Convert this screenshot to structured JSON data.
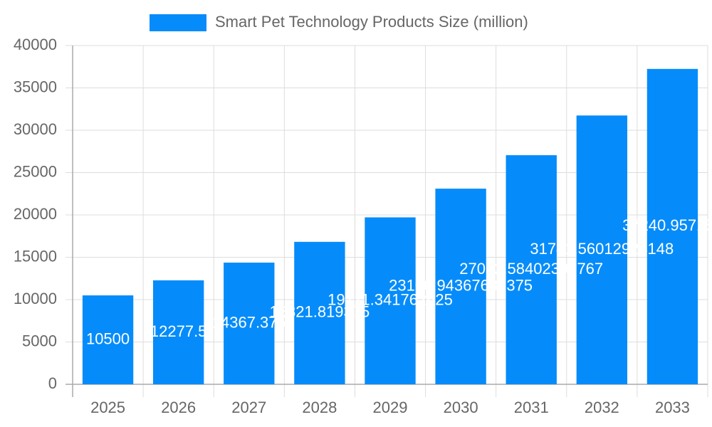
{
  "chart_data": {
    "type": "bar",
    "categories": [
      "2025",
      "2026",
      "2027",
      "2028",
      "2029",
      "2030",
      "2031",
      "2032",
      "2033"
    ],
    "series": [
      {
        "name": "Smart Pet Technology Products Size (million)",
        "color": "#068cfa",
        "values": [
          10500,
          12277.5,
          14367.375,
          16821.819375,
          19711.341762625,
          23100.94367689375,
          27052.58402399767,
          31741.56012924148,
          37240.957152
        ]
      }
    ],
    "ylim": [
      0,
      40000
    ],
    "yticks": [
      0,
      5000,
      10000,
      15000,
      20000,
      25000,
      30000,
      35000,
      40000
    ],
    "grid": true
  }
}
